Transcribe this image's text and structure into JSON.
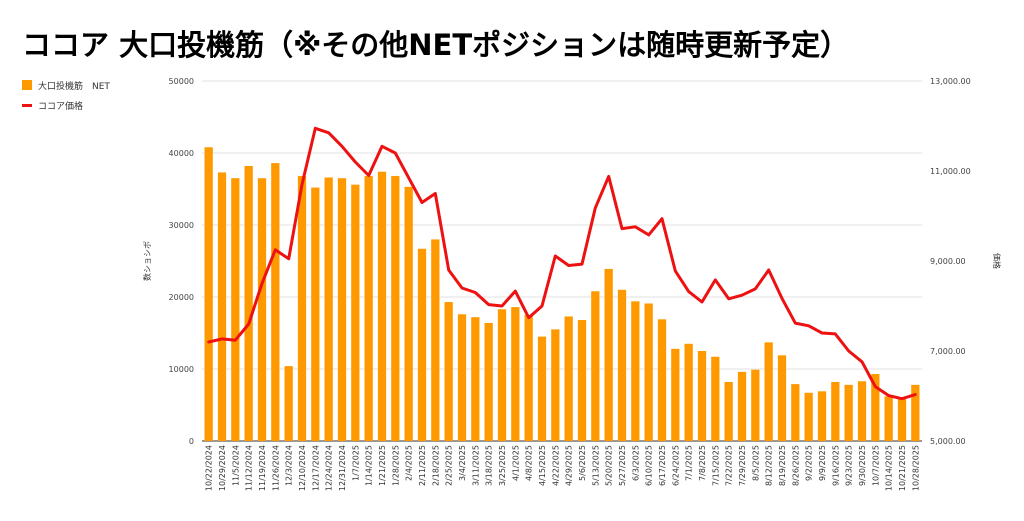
{
  "chart_data": {
    "type": "bar+line",
    "title": "ココア 大口投機筋（※その他NETポジションは随時更新予定）",
    "legend": [
      {
        "name": "大口投機筋　NET",
        "color": "#ff9900",
        "kind": "bar"
      },
      {
        "name": "ココア価格",
        "color": "#ee1111",
        "kind": "line"
      }
    ],
    "ylabel_left": "数ショシボ",
    "ylabel_right": "価格",
    "ylim_left": [
      0,
      50000
    ],
    "yticks_left": [
      "0",
      "10000",
      "20000",
      "30000",
      "40000",
      "50000"
    ],
    "ylim_right": [
      5000,
      13000
    ],
    "yticks_right": [
      "5,000.00",
      "7,000.00",
      "9,000.00",
      "11,000.00",
      "13,000.00"
    ],
    "categories": [
      "10/22/2024",
      "10/29/2024",
      "11/5/2024",
      "11/12/2024",
      "11/19/2024",
      "11/26/2024",
      "12/3/2024",
      "12/10/2024",
      "12/17/2024",
      "12/24/2024",
      "12/31/2024",
      "1/7/2025",
      "1/14/2025",
      "1/21/2025",
      "1/28/2025",
      "2/4/2025",
      "2/11/2025",
      "2/18/2025",
      "2/25/2025",
      "3/4/2025",
      "3/11/2025",
      "3/18/2025",
      "3/25/2025",
      "4/1/2025",
      "4/8/2025",
      "4/15/2025",
      "4/22/2025",
      "4/29/2025",
      "5/6/2025",
      "5/13/2025",
      "5/20/2025",
      "5/27/2025",
      "6/3/2025",
      "6/10/2025",
      "6/17/2025",
      "6/24/2025",
      "7/1/2025",
      "7/8/2025",
      "7/15/2025",
      "7/22/2025",
      "7/29/2025",
      "8/5/2025",
      "8/12/2025",
      "8/19/2025",
      "8/26/2025",
      "9/2/2025",
      "9/9/2025",
      "9/16/2025",
      "9/23/2025",
      "9/30/2025",
      "10/7/2025",
      "10/14/2025",
      "10/21/2025",
      "10/28/2025"
    ],
    "series": [
      {
        "name": "大口投機筋　NET",
        "type": "bar",
        "axis": "left",
        "values": [
          40800,
          37300,
          36500,
          38200,
          36500,
          38600,
          10400,
          36800,
          35200,
          36600,
          36500,
          35600,
          36800,
          37400,
          36800,
          35300,
          26700,
          28000,
          19300,
          17600,
          17200,
          16400,
          18300,
          18600,
          17500,
          14500,
          15500,
          17300,
          16800,
          20800,
          23900,
          21000,
          19400,
          19100,
          16900,
          12800,
          13500,
          12500,
          11700,
          8200,
          9600,
          9900,
          13700,
          11900,
          7900,
          6700,
          6900,
          8200,
          7800,
          8300,
          9300,
          6200,
          6100,
          7800
        ]
      },
      {
        "name": "ココア価格",
        "type": "line",
        "axis": "right",
        "values": [
          7200,
          7270,
          7240,
          7600,
          8500,
          9250,
          9050,
          10700,
          11950,
          11850,
          11550,
          11200,
          10900,
          11550,
          11400,
          10850,
          10300,
          10500,
          8800,
          8400,
          8300,
          8030,
          8000,
          8330,
          7740,
          8000,
          9110,
          8900,
          8930,
          10180,
          10880,
          9720,
          9760,
          9580,
          9940,
          8780,
          8320,
          8090,
          8580,
          8160,
          8240,
          8380,
          8800,
          8170,
          7620,
          7560,
          7400,
          7380,
          7000,
          6760,
          6210,
          6010,
          5940,
          6030
        ]
      }
    ]
  }
}
